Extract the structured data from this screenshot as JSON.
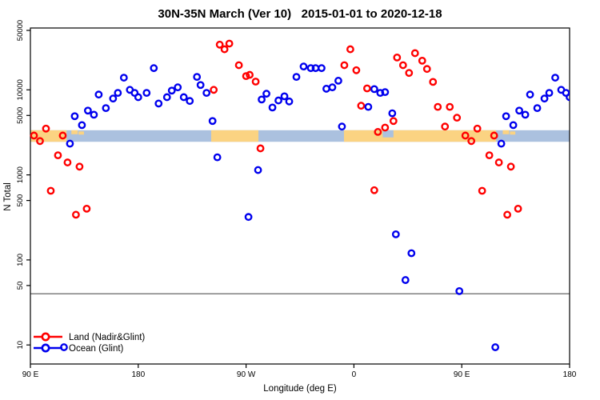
{
  "title": "30N-35N March (Ver 10)   2015-01-01 to 2020-12-18",
  "colors": {
    "land_series": "#FF0000",
    "ocean_series": "#0000EE",
    "band_land": "#FBD382",
    "band_ocean": "#ABC1DF",
    "threshold_line": "#555555",
    "axis": "#000000"
  },
  "chart_data": {
    "type": "scatter",
    "title": "30N-35N March (Ver 10)   2015-01-01 to 2020-12-18",
    "xlabel": "Longitude (deg E)",
    "ylabel": "N Total",
    "x_axis": {
      "range": [
        90,
        540
      ],
      "ticks": [
        90,
        180,
        270,
        360,
        450,
        540
      ],
      "tick_labels": [
        "90 E",
        "180",
        "90 W",
        "0",
        "90 E",
        "180"
      ],
      "wrap_note": "longitude axis spans 450 deg; points with lon <= 180 are plotted twice (at lon and lon+360)"
    },
    "y_axis": {
      "scale": "log",
      "range": [
        9,
        60000
      ],
      "ticks": [
        10,
        50,
        100,
        500,
        1000,
        5000,
        10000,
        50000
      ],
      "tick_labels": [
        "10",
        "50",
        "100",
        "500",
        "1000",
        "5000",
        "10000",
        "50000"
      ]
    },
    "threshold_line": {
      "value": 40
    },
    "coast_band": {
      "n_top": 3350,
      "n_bottom": 2450,
      "ocean_extent": [
        90,
        540
      ],
      "land_segments": [
        [
          90,
          120.2
        ],
        [
          240.9,
          280.3
        ],
        [
          351.7,
          478.6
        ]
      ],
      "ocean_notches": [
        {
          "lon": [
            384,
            393
          ],
          "depth_frac": 0.62
        }
      ],
      "island_specks": [
        {
          "lon": [
            124.2,
            129.5
          ],
          "dy": 0,
          "h": 5
        },
        {
          "lon": [
            130.2,
            134.7
          ],
          "dy": 1.5,
          "h": 4
        },
        {
          "lon": [
            484.2,
            489.5
          ],
          "dy": 0,
          "h": 5
        },
        {
          "lon": [
            490.2,
            494.7
          ],
          "dy": 1.5,
          "h": 4
        }
      ]
    },
    "series": [
      {
        "name": "Land (Nadir&Glint)",
        "color": "#FF0000",
        "points": [
          [
            93,
            2900
          ],
          [
            98,
            2500
          ],
          [
            103,
            3500
          ],
          [
            107,
            650
          ],
          [
            113,
            1700
          ],
          [
            117,
            2900
          ],
          [
            121,
            1400
          ],
          [
            128,
            340
          ],
          [
            131,
            1250
          ],
          [
            137,
            400
          ],
          [
            243,
            10000
          ],
          [
            248,
            34000
          ],
          [
            252,
            30000
          ],
          [
            256,
            35000
          ],
          [
            264,
            19500
          ],
          [
            270,
            14500
          ],
          [
            273,
            15000
          ],
          [
            278,
            12500
          ],
          [
            282,
            2050
          ],
          [
            352,
            19500
          ],
          [
            357,
            30000
          ],
          [
            362,
            17000
          ],
          [
            366,
            6500
          ],
          [
            371,
            10400
          ],
          [
            377,
            660
          ],
          [
            380,
            3200
          ],
          [
            386,
            3600
          ],
          [
            393,
            4300
          ],
          [
            396,
            24000
          ],
          [
            401,
            19500
          ],
          [
            406,
            15800
          ],
          [
            411,
            27000
          ],
          [
            417,
            22000
          ],
          [
            421,
            17600
          ],
          [
            426,
            12400
          ],
          [
            430,
            6300
          ],
          [
            436,
            3700
          ],
          [
            440,
            6300
          ],
          [
            446,
            4700
          ]
        ]
      },
      {
        "name": "Ocean (Glint)",
        "color": "#0000EE",
        "points": [
          [
            118,
            9.4
          ],
          [
            123,
            2330
          ],
          [
            127,
            4900
          ],
          [
            133,
            3850
          ],
          [
            138,
            5700
          ],
          [
            143,
            5100
          ],
          [
            147,
            8800
          ],
          [
            153,
            6100
          ],
          [
            159,
            7900
          ],
          [
            163,
            9200
          ],
          [
            168,
            13900
          ],
          [
            173,
            10000
          ],
          [
            177,
            9200
          ],
          [
            180,
            8200
          ],
          [
            187,
            9200
          ],
          [
            193,
            18000
          ],
          [
            197,
            6900
          ],
          [
            204,
            8200
          ],
          [
            208,
            9800
          ],
          [
            213,
            10700
          ],
          [
            218,
            8200
          ],
          [
            223,
            7400
          ],
          [
            229,
            14200
          ],
          [
            232,
            11400
          ],
          [
            237,
            9200
          ],
          [
            242,
            4300
          ],
          [
            246,
            1610
          ],
          [
            272,
            320
          ],
          [
            280,
            1140
          ],
          [
            283,
            7700
          ],
          [
            287,
            9000
          ],
          [
            292,
            6200
          ],
          [
            297,
            7500
          ],
          [
            302,
            8400
          ],
          [
            306,
            7300
          ],
          [
            312,
            14200
          ],
          [
            318,
            18800
          ],
          [
            324,
            18000
          ],
          [
            328,
            18000
          ],
          [
            333,
            18000
          ],
          [
            337,
            10300
          ],
          [
            342,
            10700
          ],
          [
            347,
            12800
          ],
          [
            350,
            3700
          ],
          [
            372,
            6300
          ],
          [
            377,
            10200
          ],
          [
            382,
            9200
          ],
          [
            386,
            9400
          ],
          [
            392,
            5300
          ],
          [
            395,
            200
          ],
          [
            403,
            58
          ],
          [
            408,
            120
          ],
          [
            448,
            43
          ]
        ]
      }
    ],
    "legend": {
      "position": "bottom-left",
      "entries": [
        {
          "label": "Land (Nadir&Glint)",
          "color": "#FF0000"
        },
        {
          "label": "Ocean (Glint)",
          "color": "#0000EE"
        }
      ]
    }
  }
}
